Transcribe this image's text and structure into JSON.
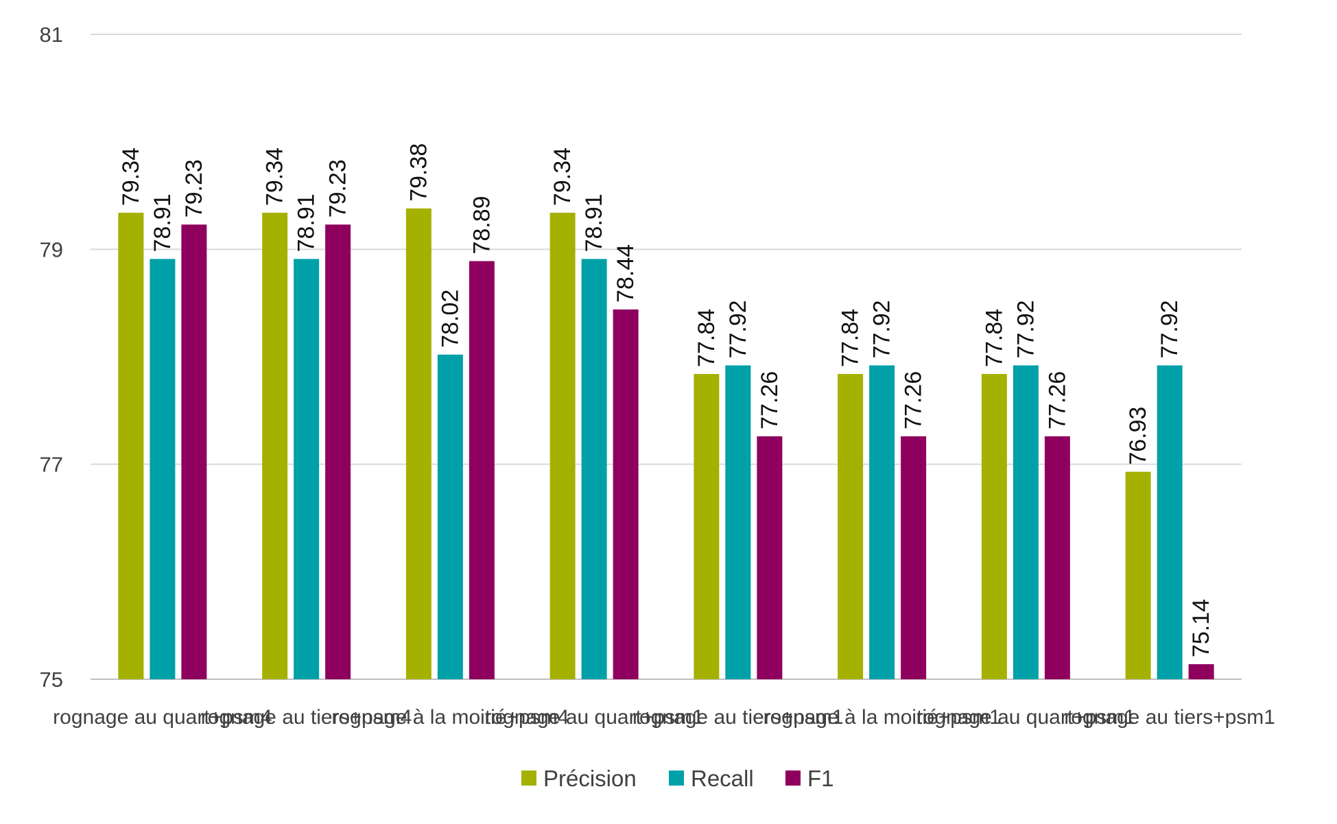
{
  "chart_data": {
    "type": "bar",
    "title": "",
    "xlabel": "",
    "ylabel": "",
    "ylim": [
      75,
      81
    ],
    "yticks": [
      75,
      77,
      79,
      81
    ],
    "grid": true,
    "legend_position": "bottom",
    "categories": [
      "rognage au quart+psm4",
      "rognage au tiers+psm4",
      "rognage à la moitié+psm4",
      "rognage au quart+psm1",
      "rognage au tiers+psm1",
      "rognage à la moitié+psm1",
      "rognage au quart+psm1",
      "rognage au tiers+psm1"
    ],
    "series": [
      {
        "name": "Précision",
        "color": "#a4b100",
        "values": [
          79.34,
          79.34,
          79.38,
          79.34,
          77.84,
          77.84,
          77.84,
          76.93
        ]
      },
      {
        "name": "Recall",
        "color": "#00a0a8",
        "values": [
          78.91,
          78.91,
          78.02,
          78.91,
          77.92,
          77.92,
          77.92,
          77.92
        ]
      },
      {
        "name": "F1",
        "color": "#8f005e",
        "values": [
          79.23,
          79.23,
          78.89,
          78.44,
          77.26,
          77.26,
          77.26,
          75.14
        ]
      }
    ]
  }
}
